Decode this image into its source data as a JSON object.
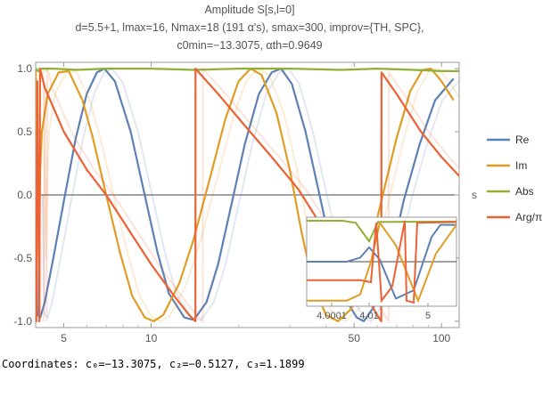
{
  "title": {
    "line1": "Amplitude S[s,l=0]",
    "line2": "d=5.5+1, lmax=16, Nmax=18 (191 α's), smax=300, improv={TH, SPC},",
    "line3": "c0min=−13.3075, αth=0.9649"
  },
  "status_text": "Coordinates: c₀=−13.3075, c₂=−0.5127, c₃=1.1899",
  "chart_data": {
    "type": "line",
    "xscale": "log",
    "xlabel": "s",
    "ylabel": "",
    "xlim": [
      4,
      115
    ],
    "ylim": [
      -1.05,
      1.05
    ],
    "xticks": [
      {
        "value": 5,
        "label": "5"
      },
      {
        "value": 10,
        "label": "10"
      },
      {
        "value": 50,
        "label": "50"
      },
      {
        "value": 100,
        "label": "100"
      }
    ],
    "yticks": [
      {
        "value": 1.0,
        "label": "1.0"
      },
      {
        "value": 0.5,
        "label": "0.5"
      },
      {
        "value": 0.0,
        "label": "0.0"
      },
      {
        "value": -0.5,
        "label": "-0.5"
      },
      {
        "value": -1.0,
        "label": "-1.0"
      }
    ],
    "legend_position": "right",
    "series": [
      {
        "name": "Re",
        "color": "#5e81b5",
        "points": [
          [
            4.0,
            0.0
          ],
          [
            4.05,
            -0.95
          ],
          [
            4.15,
            -0.97
          ],
          [
            4.3,
            -0.85
          ],
          [
            4.6,
            -0.5
          ],
          [
            5.0,
            -0.05
          ],
          [
            5.5,
            0.45
          ],
          [
            6.0,
            0.8
          ],
          [
            6.5,
            0.97
          ],
          [
            6.9,
            1.0
          ],
          [
            7.5,
            0.9
          ],
          [
            8.5,
            0.5
          ],
          [
            9.5,
            0.0
          ],
          [
            10.5,
            -0.45
          ],
          [
            11.5,
            -0.78
          ],
          [
            13.0,
            -0.97
          ],
          [
            14.0,
            -0.99
          ],
          [
            15.5,
            -0.85
          ],
          [
            17.0,
            -0.55
          ],
          [
            19.0,
            -0.05
          ],
          [
            21.0,
            0.4
          ],
          [
            23.5,
            0.8
          ],
          [
            26.0,
            0.97
          ],
          [
            28.0,
            1.0
          ],
          [
            30.5,
            0.88
          ],
          [
            34.0,
            0.5
          ],
          [
            38.0,
            0.0
          ],
          [
            42.0,
            -0.45
          ],
          [
            46.0,
            -0.8
          ],
          [
            51.0,
            -0.97
          ],
          [
            54.0,
            -1.0
          ],
          [
            60.0,
            -0.85
          ],
          [
            66.0,
            -0.55
          ],
          [
            74.0,
            -0.05
          ],
          [
            84.0,
            0.4
          ],
          [
            95.0,
            0.75
          ],
          [
            110.0,
            0.92
          ]
        ]
      },
      {
        "name": "Im",
        "color": "#e19c24",
        "points": [
          [
            4.0,
            1.0
          ],
          [
            4.05,
            0.2
          ],
          [
            4.1,
            -0.5
          ],
          [
            4.15,
            0.2
          ],
          [
            4.2,
            0.5
          ],
          [
            4.4,
            0.8
          ],
          [
            4.8,
            0.97
          ],
          [
            5.2,
            0.98
          ],
          [
            5.8,
            0.75
          ],
          [
            6.3,
            0.45
          ],
          [
            7.0,
            0.0
          ],
          [
            7.8,
            -0.45
          ],
          [
            8.6,
            -0.8
          ],
          [
            9.5,
            -0.97
          ],
          [
            10.2,
            -1.0
          ],
          [
            11.0,
            -0.95
          ],
          [
            12.5,
            -0.7
          ],
          [
            14.0,
            -0.35
          ],
          [
            16.0,
            0.15
          ],
          [
            18.0,
            0.6
          ],
          [
            20.0,
            0.9
          ],
          [
            22.0,
            1.0
          ],
          [
            24.0,
            0.95
          ],
          [
            27.0,
            0.65
          ],
          [
            30.0,
            0.2
          ],
          [
            33.0,
            -0.3
          ],
          [
            36.0,
            -0.7
          ],
          [
            40.0,
            -0.95
          ],
          [
            44.0,
            -1.0
          ],
          [
            49.0,
            -0.9
          ],
          [
            55.0,
            -0.55
          ],
          [
            62.0,
            -0.05
          ],
          [
            70.0,
            0.45
          ],
          [
            78.0,
            0.82
          ],
          [
            86.0,
            0.99
          ],
          [
            92.0,
            1.0
          ],
          [
            100.0,
            0.9
          ],
          [
            110.0,
            0.75
          ]
        ]
      },
      {
        "name": "Abs",
        "color": "#8fb032",
        "points": [
          [
            4.0,
            1.0
          ],
          [
            4.02,
            0.99
          ],
          [
            4.08,
            0.98
          ],
          [
            4.2,
            1.0
          ],
          [
            4.6,
            1.0
          ],
          [
            5.5,
            0.99
          ],
          [
            7.0,
            1.0
          ],
          [
            10.0,
            1.0
          ],
          [
            14.0,
            0.99
          ],
          [
            20.0,
            1.0
          ],
          [
            30.0,
            1.0
          ],
          [
            45.0,
            0.99
          ],
          [
            60.0,
            1.0
          ],
          [
            80.0,
            0.99
          ],
          [
            100.0,
            0.98
          ],
          [
            115.0,
            0.98
          ]
        ]
      },
      {
        "name": "Arg/π",
        "color": "#eb6235",
        "points": [
          [
            4.0,
            0.0
          ],
          [
            4.02,
            -1.0
          ],
          [
            4.05,
            0.9
          ],
          [
            4.08,
            -0.1
          ],
          [
            4.1,
            -0.3
          ],
          [
            4.12,
            -1.0
          ],
          [
            4.14,
            1.0
          ],
          [
            4.3,
            0.85
          ],
          [
            5.0,
            0.5
          ],
          [
            6.0,
            0.2
          ],
          [
            7.0,
            0.0
          ],
          [
            8.5,
            -0.3
          ],
          [
            10.0,
            -0.55
          ],
          [
            12.0,
            -0.8
          ],
          [
            13.5,
            -0.95
          ],
          [
            14.2,
            -1.0
          ],
          [
            14.21,
            1.0
          ],
          [
            17.0,
            0.8
          ],
          [
            21.0,
            0.55
          ],
          [
            26.0,
            0.3
          ],
          [
            32.0,
            0.05
          ],
          [
            40.0,
            -0.3
          ],
          [
            48.0,
            -0.6
          ],
          [
            55.0,
            -0.8
          ],
          [
            60.0,
            -0.95
          ],
          [
            62.0,
            -1.0
          ],
          [
            62.1,
            0.97
          ],
          [
            70.0,
            0.8
          ],
          [
            85.0,
            0.5
          ],
          [
            100.0,
            0.3
          ],
          [
            115.0,
            0.15
          ]
        ]
      }
    ],
    "inset": {
      "xticks": [
        {
          "value": 4.0001,
          "label": "4.0001"
        },
        {
          "value": 4.01,
          "label": "4.01"
        },
        {
          "value": 5,
          "label": "5"
        }
      ]
    }
  }
}
